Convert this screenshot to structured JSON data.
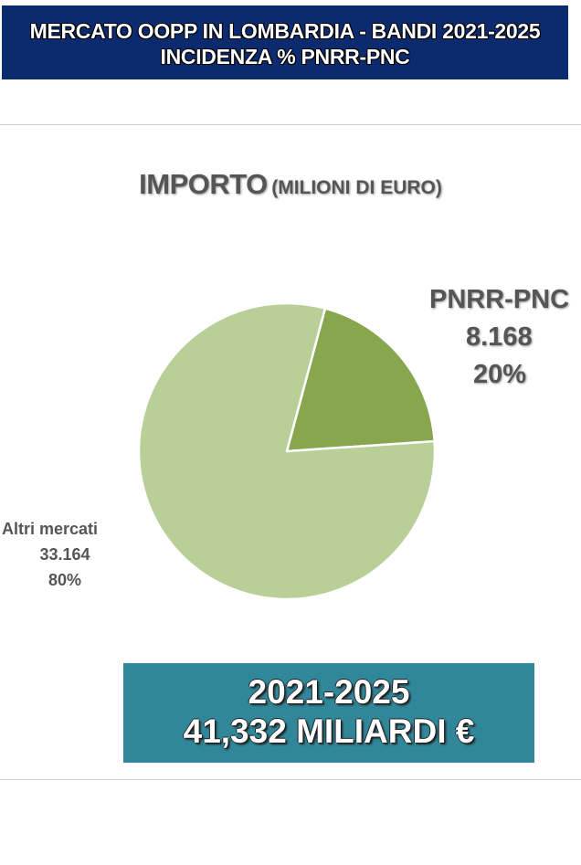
{
  "header": {
    "line1": "MERCATO OOPP IN LOMBARDIA - BANDI 2021-2025",
    "line2": "INCIDENZA % PNRR-PNC"
  },
  "chart_data": {
    "type": "pie",
    "title": "IMPORTO",
    "subtitle": "(MILIONI DI EURO)",
    "slices": [
      {
        "label": "PNRR-PNC",
        "value_text": "8.168",
        "value": 8168,
        "percent_text": "20%",
        "percent": 20,
        "color": "#87a64e"
      },
      {
        "label": "Altri mercati",
        "value_text": "33.164",
        "value": 33164,
        "percent_text": "80%",
        "percent": 80,
        "color": "#b8cf98"
      }
    ],
    "start_angle_deg": 15,
    "slice_border_color": "#ffffff"
  },
  "total": {
    "period": "2021-2025",
    "amount": "41,332 MILIARDI €"
  },
  "colors": {
    "header_bg": "#0b2b6e",
    "total_bg": "#31879a",
    "label_text": "#555555"
  }
}
